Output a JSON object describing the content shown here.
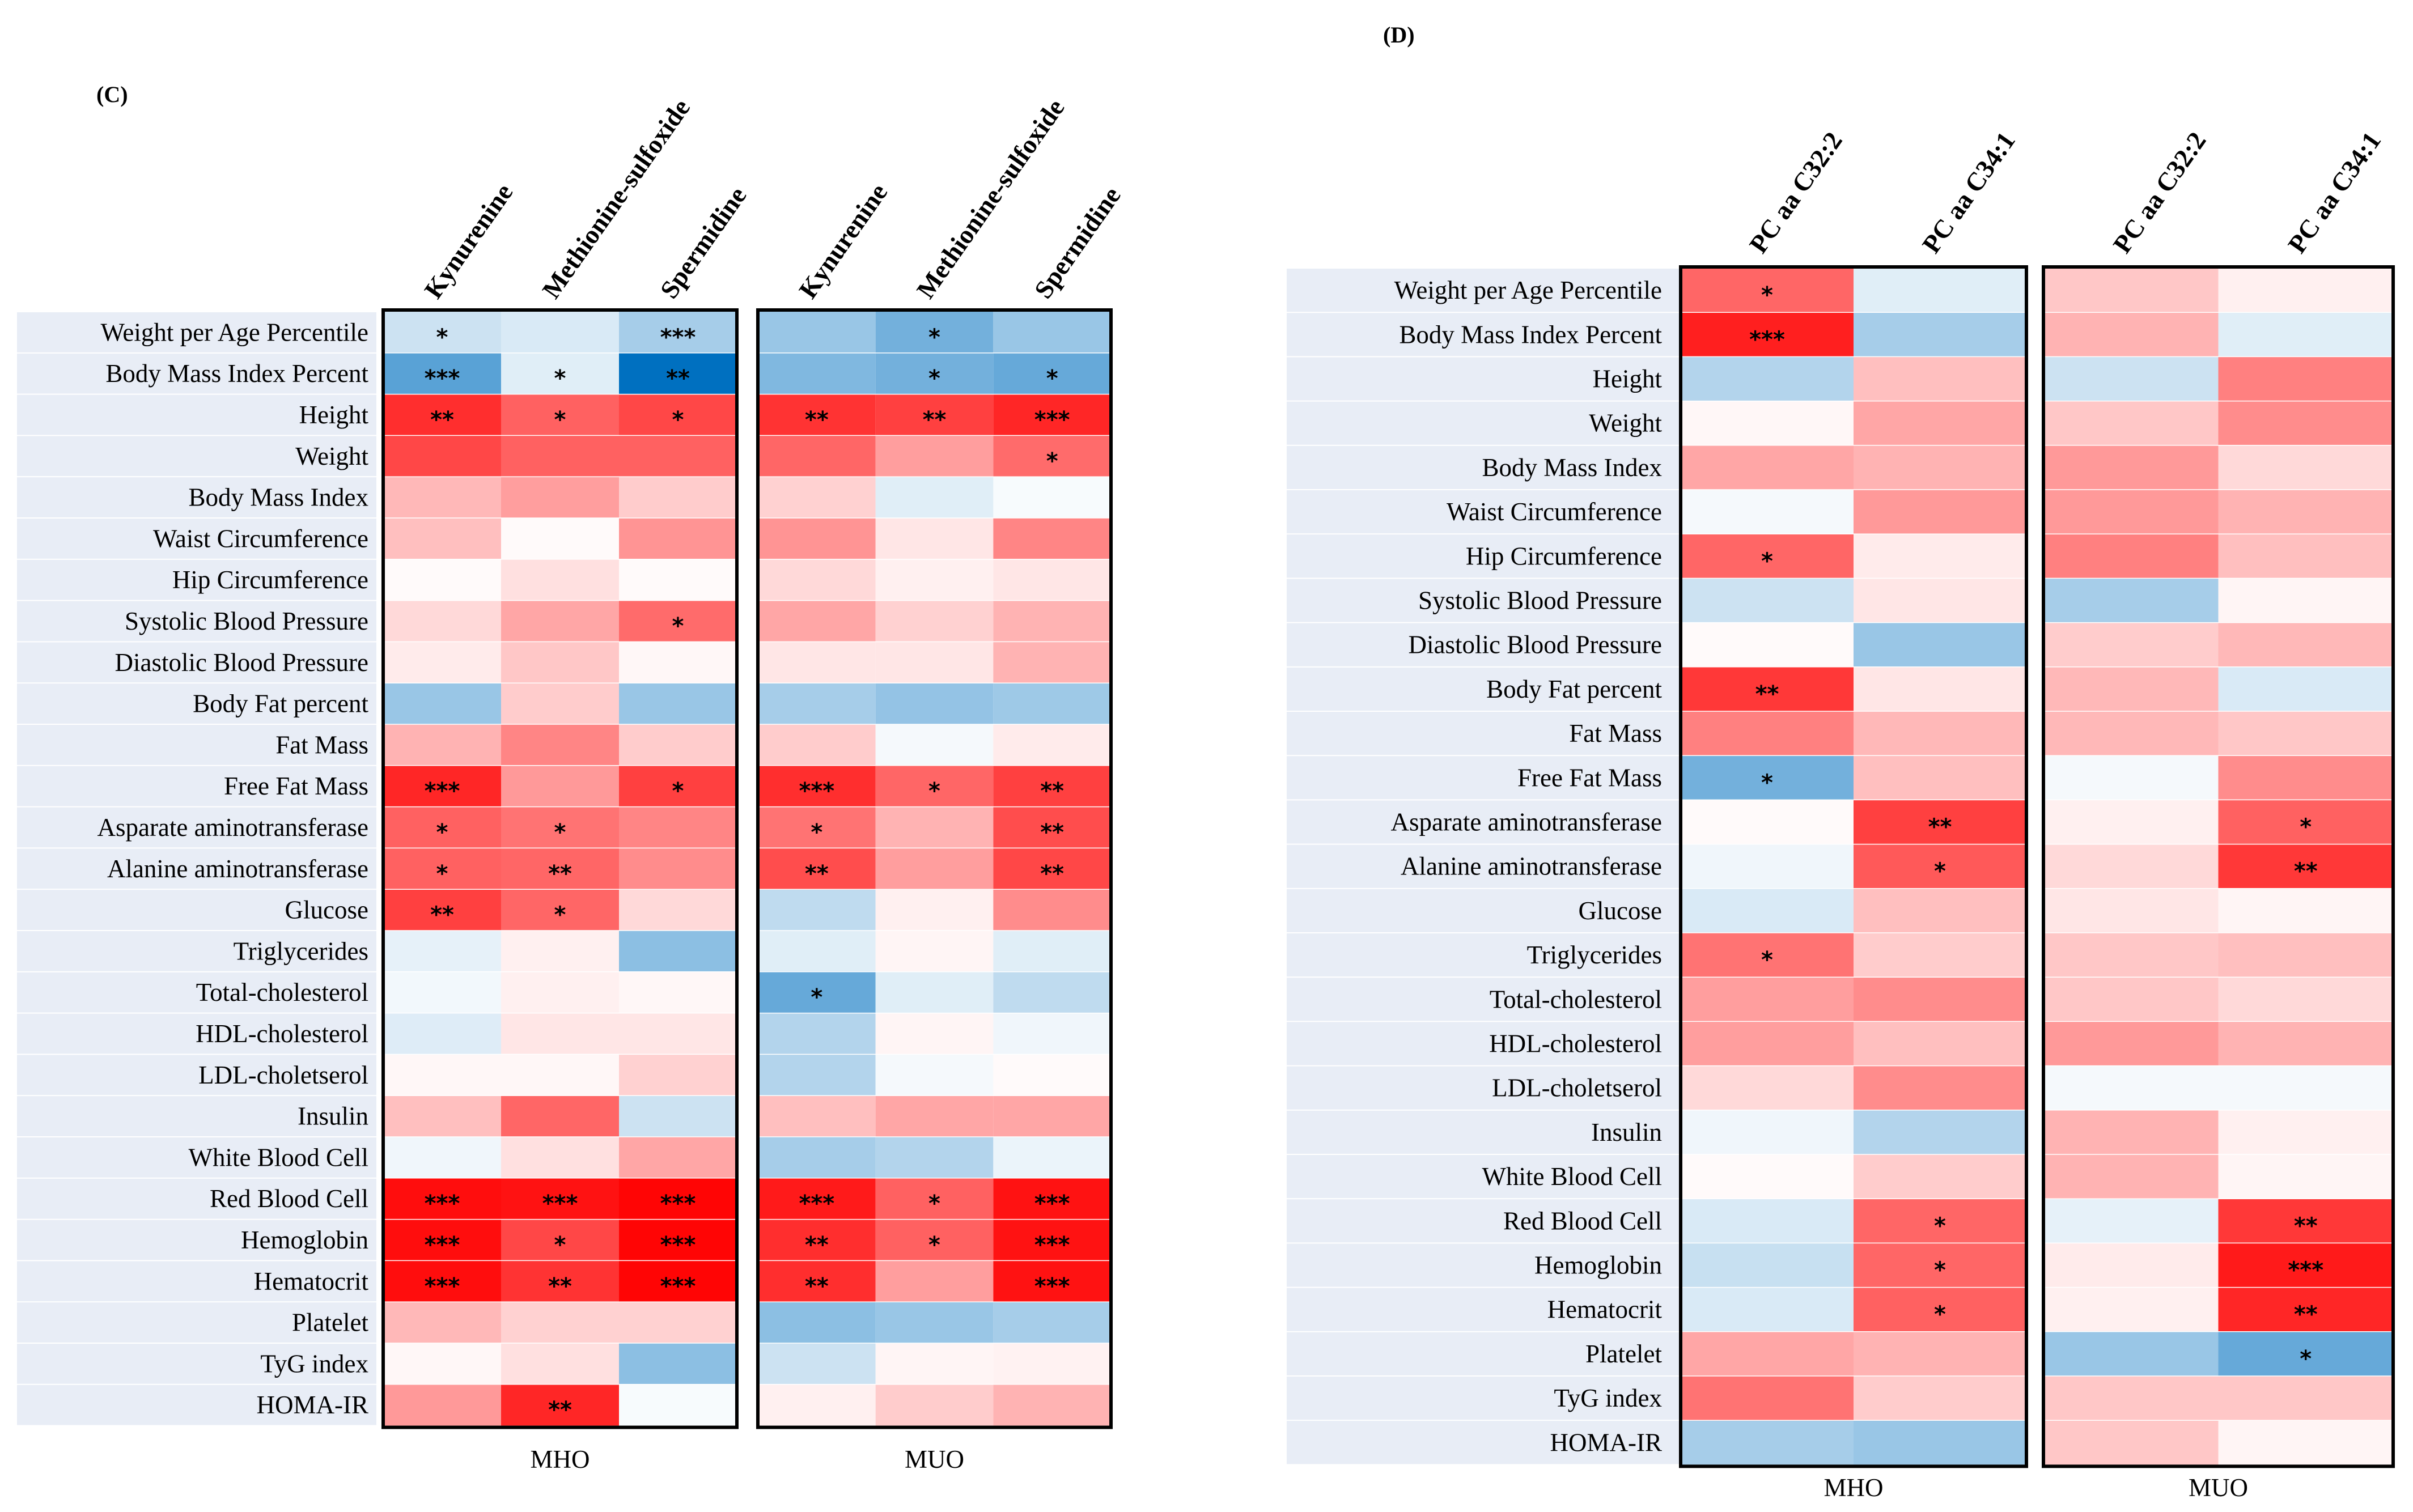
{
  "chart_data": [
    {
      "type": "heatmap",
      "panel_label": "(C)",
      "columns": [
        "Kynurenine",
        "Methionine-sulfoxide",
        "Spermidine",
        "Kynurenine",
        "Methionine-sulfoxide",
        "Spermidine"
      ],
      "groups": [
        {
          "name": "MHO",
          "columns": [
            0,
            1,
            2
          ]
        },
        {
          "name": "MUO",
          "columns": [
            3,
            4,
            5
          ]
        }
      ],
      "rows": [
        {
          "label": "Weight per Age Percentile",
          "values": [
            -0.2,
            -0.15,
            -0.35,
            -0.4,
            -0.55,
            -0.4
          ],
          "stars": [
            "*",
            "",
            "***",
            "",
            "*",
            ""
          ]
        },
        {
          "label": "Body Mass Index Percent",
          "values": [
            -0.65,
            -0.12,
            -1.0,
            -0.5,
            -0.55,
            -0.6
          ],
          "stars": [
            "***",
            "*",
            "**",
            "",
            "*",
            "*"
          ]
        },
        {
          "label": "Height",
          "values": [
            0.82,
            0.62,
            0.72,
            0.8,
            0.75,
            0.85
          ],
          "stars": [
            "**",
            "*",
            "*",
            "**",
            "**",
            "***"
          ]
        },
        {
          "label": "Weight",
          "values": [
            0.72,
            0.62,
            0.62,
            0.6,
            0.38,
            0.58
          ],
          "stars": [
            "",
            "",
            "",
            "",
            "",
            "*"
          ]
        },
        {
          "label": "Body Mass Index",
          "values": [
            0.28,
            0.38,
            0.2,
            0.18,
            -0.12,
            -0.03
          ],
          "stars": [
            "",
            "",
            "",
            "",
            "",
            ""
          ]
        },
        {
          "label": "Waist Circumference",
          "values": [
            0.25,
            0.02,
            0.42,
            0.42,
            0.1,
            0.48
          ],
          "stars": [
            "",
            "",
            "",
            "",
            "",
            ""
          ]
        },
        {
          "label": "Hip Circumference",
          "values": [
            0.02,
            0.12,
            0.02,
            0.15,
            0.06,
            0.1
          ],
          "stars": [
            "",
            "",
            "",
            "",
            "",
            ""
          ]
        },
        {
          "label": "Systolic Blood Pressure",
          "values": [
            0.15,
            0.35,
            0.58,
            0.35,
            0.18,
            0.3
          ],
          "stars": [
            "",
            "",
            "*",
            "",
            "",
            ""
          ]
        },
        {
          "label": "Diastolic Blood Pressure",
          "values": [
            0.08,
            0.22,
            0.03,
            0.1,
            0.1,
            0.3
          ],
          "stars": [
            "",
            "",
            "",
            "",
            "",
            ""
          ]
        },
        {
          "label": "Body Fat percent",
          "values": [
            -0.4,
            0.2,
            -0.4,
            -0.35,
            -0.42,
            -0.38
          ],
          "stars": [
            "",
            "",
            "",
            "",
            "",
            ""
          ]
        },
        {
          "label": "Fat Mass",
          "values": [
            0.3,
            0.48,
            0.2,
            0.2,
            -0.04,
            0.08
          ],
          "stars": [
            "",
            "",
            "",
            "",
            "",
            ""
          ]
        },
        {
          "label": "Free Fat Mass",
          "values": [
            0.85,
            0.4,
            0.75,
            0.82,
            0.6,
            0.75
          ],
          "stars": [
            "***",
            "",
            "*",
            "***",
            "*",
            "**"
          ]
        },
        {
          "label": "Asparate aminotransferase",
          "values": [
            0.62,
            0.55,
            0.48,
            0.55,
            0.3,
            0.7
          ],
          "stars": [
            "*",
            "*",
            "",
            "*",
            "",
            "**"
          ]
        },
        {
          "label": "Alanine aminotransferase",
          "values": [
            0.62,
            0.6,
            0.45,
            0.7,
            0.38,
            0.72
          ],
          "stars": [
            "*",
            "**",
            "",
            "**",
            "",
            "**"
          ]
        },
        {
          "label": "Glucose",
          "values": [
            0.75,
            0.6,
            0.15,
            -0.25,
            0.06,
            0.45
          ],
          "stars": [
            "**",
            "*",
            "",
            "",
            "",
            ""
          ]
        },
        {
          "label": "Triglycerides",
          "values": [
            -0.1,
            0.06,
            -0.45,
            -0.12,
            0.04,
            -0.12
          ],
          "stars": [
            "",
            "",
            "",
            "",
            "",
            ""
          ]
        },
        {
          "label": "Total-cholesterol",
          "values": [
            -0.05,
            0.06,
            0.03,
            -0.6,
            -0.12,
            -0.25
          ],
          "stars": [
            "",
            "",
            "",
            "*",
            "",
            ""
          ]
        },
        {
          "label": "HDL-cholesterol",
          "values": [
            -0.13,
            0.1,
            0.1,
            -0.3,
            0.04,
            -0.06
          ],
          "stars": [
            "",
            "",
            "",
            "",
            "",
            ""
          ]
        },
        {
          "label": "LDL-choletserol",
          "values": [
            0.03,
            0.03,
            0.18,
            -0.3,
            -0.04,
            0.02
          ],
          "stars": [
            "",
            "",
            "",
            "",
            "",
            ""
          ]
        },
        {
          "label": "Insulin",
          "values": [
            0.25,
            0.6,
            -0.2,
            0.25,
            0.35,
            0.35
          ],
          "stars": [
            "",
            "",
            "",
            "",
            "",
            ""
          ]
        },
        {
          "label": "White Blood Cell",
          "values": [
            -0.06,
            0.12,
            0.35,
            -0.35,
            -0.3,
            -0.08
          ],
          "stars": [
            "",
            "",
            "",
            "",
            "",
            ""
          ]
        },
        {
          "label": "Red Blood Cell",
          "values": [
            0.95,
            0.93,
            0.98,
            0.9,
            0.62,
            0.93
          ],
          "stars": [
            "***",
            "***",
            "***",
            "***",
            "*",
            "***"
          ]
        },
        {
          "label": "Hemoglobin",
          "values": [
            0.95,
            0.72,
            0.98,
            0.82,
            0.62,
            0.93
          ],
          "stars": [
            "***",
            "*",
            "***",
            "**",
            "*",
            "***"
          ]
        },
        {
          "label": "Hematocrit",
          "values": [
            0.95,
            0.8,
            0.98,
            0.82,
            0.38,
            0.93
          ],
          "stars": [
            "***",
            "**",
            "***",
            "**",
            "",
            "***"
          ]
        },
        {
          "label": "Platelet",
          "values": [
            0.28,
            0.18,
            0.18,
            -0.45,
            -0.4,
            -0.35
          ],
          "stars": [
            "",
            "",
            "",
            "",
            "",
            ""
          ]
        },
        {
          "label": "TyG index",
          "values": [
            0.03,
            0.12,
            -0.45,
            -0.2,
            0.04,
            0.05
          ],
          "stars": [
            "",
            "",
            "",
            "",
            "",
            ""
          ]
        },
        {
          "label": "HOMA-IR",
          "values": [
            0.4,
            0.85,
            -0.03,
            0.06,
            0.2,
            0.3
          ],
          "stars": [
            "",
            "**",
            "",
            "",
            "",
            ""
          ]
        }
      ]
    },
    {
      "type": "heatmap",
      "panel_label": "(D)",
      "columns": [
        "PC aa C32:2",
        "PC aa C34:1",
        "PC aa C32:2",
        "PC aa C34:1"
      ],
      "groups": [
        {
          "name": "MHO",
          "columns": [
            0,
            1
          ]
        },
        {
          "name": "MUO",
          "columns": [
            2,
            3
          ]
        }
      ],
      "rows": [
        {
          "label": "Weight per Age Percentile",
          "values": [
            0.6,
            -0.12,
            0.22,
            0.06
          ],
          "stars": [
            "*",
            "",
            "",
            ""
          ]
        },
        {
          "label": "Body Mass Index Percent",
          "values": [
            0.88,
            -0.35,
            0.3,
            -0.12
          ],
          "stars": [
            "***",
            "",
            "",
            ""
          ]
        },
        {
          "label": "Height",
          "values": [
            -0.3,
            0.25,
            -0.2,
            0.5
          ],
          "stars": [
            "",
            "",
            "",
            ""
          ]
        },
        {
          "label": "Weight",
          "values": [
            0.03,
            0.35,
            0.22,
            0.45
          ],
          "stars": [
            "",
            "",
            "",
            ""
          ]
        },
        {
          "label": "Body Mass Index",
          "values": [
            0.35,
            0.3,
            0.4,
            0.15
          ],
          "stars": [
            "",
            "",
            "",
            ""
          ]
        },
        {
          "label": "Waist Circumference",
          "values": [
            -0.04,
            0.4,
            0.4,
            0.3
          ],
          "stars": [
            "",
            "",
            "",
            ""
          ]
        },
        {
          "label": "Hip Circumference",
          "values": [
            0.6,
            0.08,
            0.5,
            0.25
          ],
          "stars": [
            "*",
            "",
            "",
            ""
          ]
        },
        {
          "label": "Systolic Blood Pressure",
          "values": [
            -0.2,
            0.1,
            -0.35,
            0.04
          ],
          "stars": [
            "",
            "",
            "",
            ""
          ]
        },
        {
          "label": "Diastolic Blood Pressure",
          "values": [
            0.02,
            -0.4,
            0.2,
            0.28
          ],
          "stars": [
            "",
            "",
            "",
            ""
          ]
        },
        {
          "label": "Body Fat percent",
          "values": [
            0.78,
            0.1,
            0.28,
            -0.15
          ],
          "stars": [
            "**",
            "",
            "",
            ""
          ]
        },
        {
          "label": "Fat Mass",
          "values": [
            0.5,
            0.28,
            0.28,
            0.22
          ],
          "stars": [
            "",
            "",
            "",
            ""
          ]
        },
        {
          "label": "Free Fat Mass",
          "values": [
            -0.55,
            0.25,
            -0.04,
            0.45
          ],
          "stars": [
            "*",
            "",
            "",
            ""
          ]
        },
        {
          "label": "Asparate aminotransferase",
          "values": [
            0.02,
            0.75,
            0.06,
            0.62
          ],
          "stars": [
            "",
            "**",
            "",
            "*"
          ]
        },
        {
          "label": "Alanine aminotransferase",
          "values": [
            -0.06,
            0.65,
            0.15,
            0.78
          ],
          "stars": [
            "",
            "*",
            "",
            "**"
          ]
        },
        {
          "label": "Glucose",
          "values": [
            -0.15,
            0.25,
            0.1,
            0.04
          ],
          "stars": [
            "",
            "",
            "",
            ""
          ]
        },
        {
          "label": "Triglycerides",
          "values": [
            0.55,
            0.2,
            0.22,
            0.25
          ],
          "stars": [
            "*",
            "",
            "",
            ""
          ]
        },
        {
          "label": "Total-cholesterol",
          "values": [
            0.38,
            0.45,
            0.22,
            0.15
          ],
          "stars": [
            "",
            "",
            "",
            ""
          ]
        },
        {
          "label": "HDL-cholesterol",
          "values": [
            0.38,
            0.25,
            0.4,
            0.3
          ],
          "stars": [
            "",
            "",
            "",
            ""
          ]
        },
        {
          "label": "LDL-choletserol",
          "values": [
            0.15,
            0.45,
            -0.04,
            -0.04
          ],
          "stars": [
            "",
            "",
            "",
            ""
          ]
        },
        {
          "label": "Insulin",
          "values": [
            -0.06,
            -0.3,
            0.3,
            0.06
          ],
          "stars": [
            "",
            "",
            "",
            ""
          ]
        },
        {
          "label": "White Blood Cell",
          "values": [
            0.02,
            0.2,
            0.3,
            0.04
          ],
          "stars": [
            "",
            "",
            "",
            ""
          ]
        },
        {
          "label": "Red Blood Cell",
          "values": [
            -0.15,
            0.6,
            -0.1,
            0.78
          ],
          "stars": [
            "",
            "*",
            "",
            "**"
          ]
        },
        {
          "label": "Hemoglobin",
          "values": [
            -0.22,
            0.6,
            0.08,
            0.9
          ],
          "stars": [
            "",
            "*",
            "",
            "***"
          ]
        },
        {
          "label": "Hematocrit",
          "values": [
            -0.15,
            0.62,
            0.06,
            0.85
          ],
          "stars": [
            "",
            "*",
            "",
            "**"
          ]
        },
        {
          "label": "Platelet",
          "values": [
            0.35,
            0.3,
            -0.4,
            -0.6
          ],
          "stars": [
            "",
            "",
            "",
            "*"
          ]
        },
        {
          "label": "TyG index",
          "values": [
            0.55,
            0.2,
            0.22,
            0.22
          ],
          "stars": [
            "",
            "",
            "",
            ""
          ]
        },
        {
          "label": "HOMA-IR",
          "values": [
            -0.35,
            -0.4,
            0.22,
            0.04
          ],
          "stars": [
            "",
            "",
            "",
            ""
          ]
        }
      ]
    }
  ]
}
